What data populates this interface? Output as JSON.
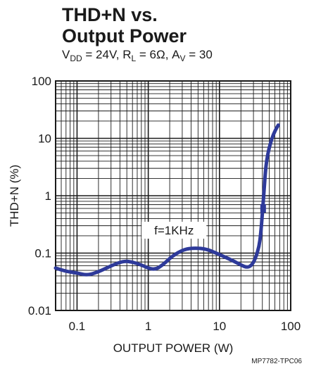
{
  "chart_data": {
    "type": "line",
    "title_line1": "THD+N vs.",
    "title_line2": "Output Power",
    "subtitle": {
      "vdd_label": "V",
      "vdd_sub": "DD",
      "vdd_value": " = 24V, ",
      "rl_label": "R",
      "rl_sub": "L",
      "rl_value": " = 6Ω, ",
      "av_label": "A",
      "av_sub": "V",
      "av_value": " = 30"
    },
    "xlabel": "OUTPUT POWER (W)",
    "ylabel": "THD+N (%)",
    "x_scale": "log",
    "y_scale": "log",
    "xlim": [
      0.05,
      100
    ],
    "ylim": [
      0.01,
      100
    ],
    "x_ticks": [
      {
        "value": 0.1,
        "label": "0.1"
      },
      {
        "value": 1,
        "label": "1"
      },
      {
        "value": 10,
        "label": "10"
      },
      {
        "value": 100,
        "label": "100"
      }
    ],
    "y_ticks": [
      {
        "value": 100,
        "label": "100"
      },
      {
        "value": 10,
        "label": "10"
      },
      {
        "value": 1,
        "label": "1"
      },
      {
        "value": 0.1,
        "label": "0.1"
      },
      {
        "value": 0.01,
        "label": "0.01"
      }
    ],
    "grid": true,
    "line_color": "#2e3a9a",
    "annotation": "f=1KHz",
    "series": [
      {
        "x": [
          0.05,
          0.07,
          0.1,
          0.14,
          0.2,
          0.3,
          0.45,
          0.6,
          0.8,
          1.2,
          1.6,
          2.2,
          3.2,
          4.5,
          6.5,
          9,
          12,
          16,
          20,
          24,
          28,
          32,
          36,
          38,
          40,
          42,
          44,
          46,
          50,
          56,
          62,
          67
        ],
        "y": [
          0.055,
          0.048,
          0.045,
          0.041,
          0.047,
          0.06,
          0.073,
          0.07,
          0.062,
          0.05,
          0.062,
          0.09,
          0.117,
          0.123,
          0.118,
          0.1,
          0.085,
          0.072,
          0.062,
          0.056,
          0.06,
          0.08,
          0.13,
          0.22,
          0.48,
          1.1,
          2.5,
          4.2,
          7.0,
          11.0,
          14.5,
          17.0
        ]
      }
    ]
  },
  "footer_code": "MP7782-TPC06"
}
